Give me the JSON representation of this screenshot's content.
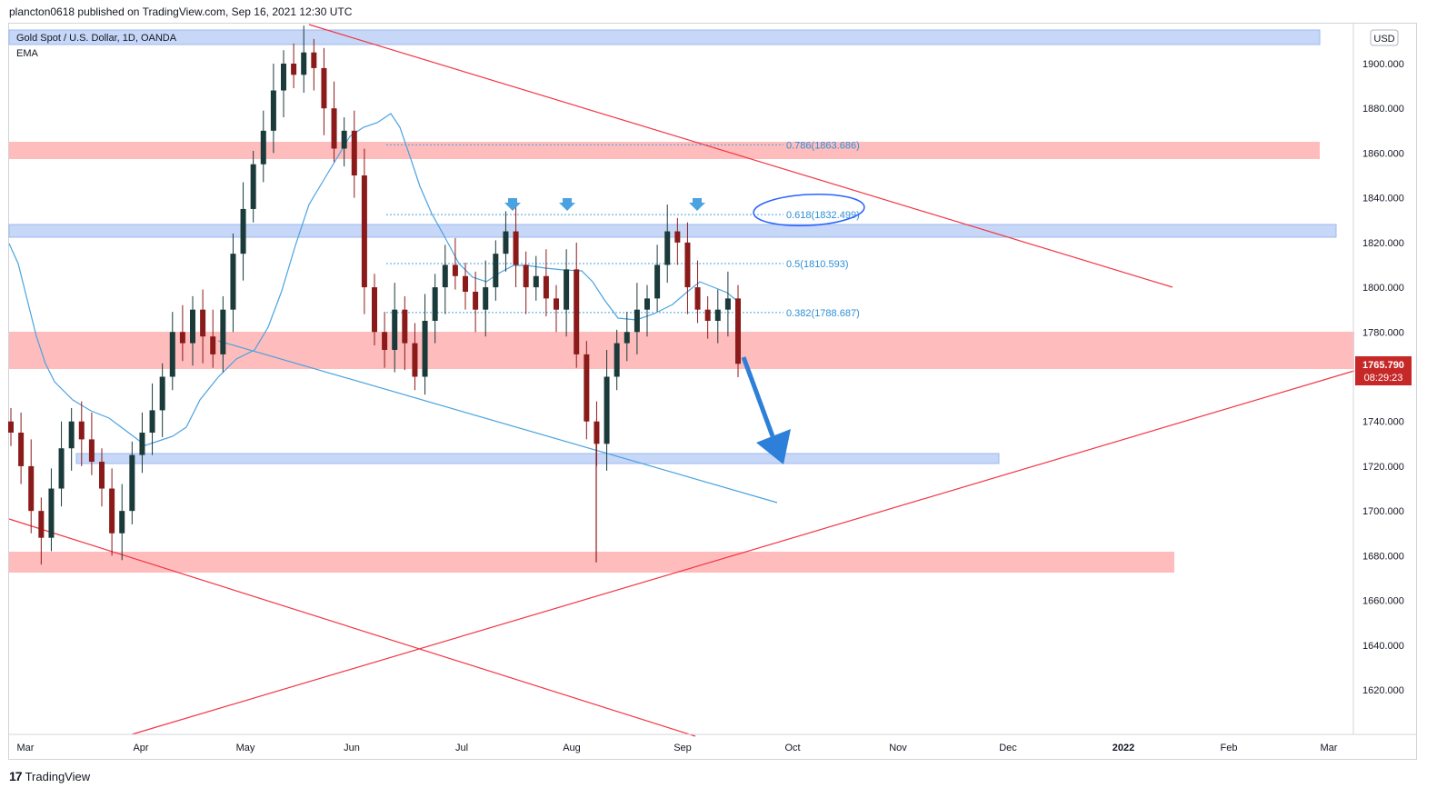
{
  "header": {
    "published_by": "plancton0618 published on TradingView.com, Sep 16, 2021 12:30 UTC"
  },
  "legend": {
    "symbol": "Gold Spot / U.S. Dollar, 1D, OANDA",
    "indicator": "EMA"
  },
  "price_axis": {
    "currency": "USD",
    "ticks": [
      "1900.000",
      "1880.000",
      "1860.000",
      "1840.000",
      "1820.000",
      "1800.000",
      "1780.000",
      "1760.000",
      "1740.000",
      "1720.000",
      "1700.000",
      "1680.000",
      "1660.000",
      "1640.000",
      "1620.000"
    ]
  },
  "current_price": {
    "price": "1765.790",
    "countdown": "08:29:23",
    "color": "#c62828"
  },
  "time_axis": {
    "labels": [
      "Mar",
      "Apr",
      "May",
      "Jun",
      "Jul",
      "Aug",
      "Sep",
      "Oct",
      "Nov",
      "Dec",
      "2022",
      "Feb",
      "Mar"
    ]
  },
  "fib_levels": [
    {
      "label": "0.786(1863.686)",
      "value": 1863.686
    },
    {
      "label": "0.618(1832.499)",
      "value": 1832.499
    },
    {
      "label": "0.5(1810.593)",
      "value": 1810.593
    },
    {
      "label": "0.382(1788.687)",
      "value": 1788.687
    }
  ],
  "colors": {
    "bull": "#1b3a3a",
    "bear": "#8b1a1a",
    "ema": "#4aa3e0",
    "trendline_red": "#f23645",
    "trendline_blue": "#4aa3e0",
    "support_zone": "#ff9a9a",
    "resistance_zone": "#a9c4f5"
  },
  "footer": {
    "brand": "TradingView"
  },
  "chart_data": {
    "type": "candlestick",
    "title": "Gold Spot / U.S. Dollar, 1D, OANDA",
    "ylim": [
      1600,
      1915
    ],
    "x_range": [
      "2021-03-01",
      "2022-03-01"
    ],
    "series": [
      {
        "name": "EMA",
        "type": "line"
      }
    ],
    "approx_closes": [
      1735,
      1720,
      1700,
      1688,
      1710,
      1728,
      1740,
      1732,
      1722,
      1710,
      1690,
      1700,
      1725,
      1735,
      1745,
      1760,
      1780,
      1775,
      1790,
      1778,
      1770,
      1790,
      1815,
      1835,
      1855,
      1870,
      1888,
      1900,
      1895,
      1905,
      1898,
      1880,
      1862,
      1870,
      1850,
      1800,
      1780,
      1772,
      1790,
      1775,
      1760,
      1785,
      1800,
      1810,
      1805,
      1798,
      1790,
      1800,
      1815,
      1825,
      1810,
      1800,
      1805,
      1795,
      1790,
      1808,
      1770,
      1740,
      1730,
      1760,
      1775,
      1780,
      1790,
      1795,
      1810,
      1825,
      1820,
      1800,
      1790,
      1785,
      1790,
      1795,
      1765.79
    ],
    "annotations": [
      "resistance zone ~1910-1915",
      "support zone ~1772-1780",
      "support zone ~1676-1686",
      "target zone ~1722-1726",
      "head-and-shoulders tops near 0.618 fib"
    ]
  }
}
